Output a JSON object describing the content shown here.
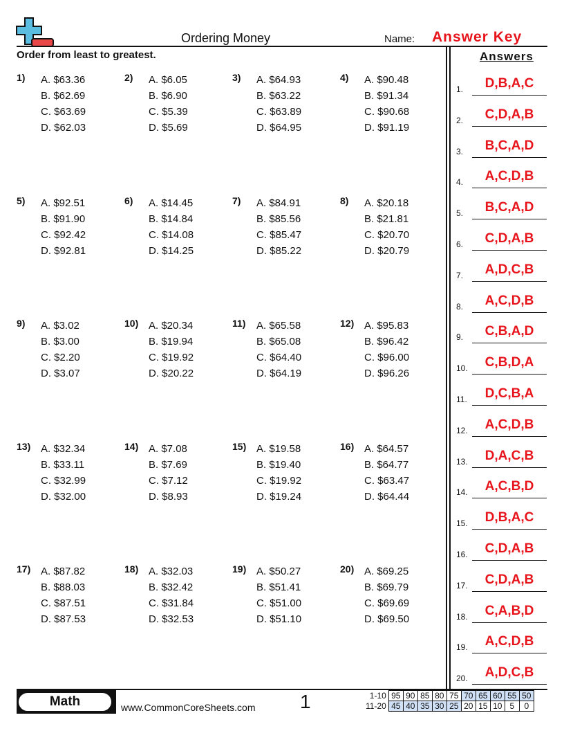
{
  "header": {
    "title": "Ordering Money",
    "name_label": "Name:",
    "name_value": "Answer Key",
    "logo": "plus-minus-logo",
    "colors": {
      "logo_plus": "#5bbde0",
      "logo_minus": "#e84848",
      "answer": "#e8141c"
    }
  },
  "instructions": "Order from least to greatest.",
  "answers_heading": "Answers",
  "problems": [
    {
      "n": "1)",
      "opts": [
        "A. $63.36",
        "B. $62.69",
        "C. $63.69",
        "D. $62.03"
      ]
    },
    {
      "n": "2)",
      "opts": [
        "A. $6.05",
        "B. $6.90",
        "C. $5.39",
        "D. $5.69"
      ]
    },
    {
      "n": "3)",
      "opts": [
        "A. $64.93",
        "B. $63.22",
        "C. $63.89",
        "D. $64.95"
      ]
    },
    {
      "n": "4)",
      "opts": [
        "A. $90.48",
        "B. $91.34",
        "C. $90.68",
        "D. $91.19"
      ]
    },
    {
      "n": "5)",
      "opts": [
        "A. $92.51",
        "B. $91.90",
        "C. $92.42",
        "D. $92.81"
      ]
    },
    {
      "n": "6)",
      "opts": [
        "A. $14.45",
        "B. $14.84",
        "C. $14.08",
        "D. $14.25"
      ]
    },
    {
      "n": "7)",
      "opts": [
        "A. $84.91",
        "B. $85.56",
        "C. $85.47",
        "D. $85.22"
      ]
    },
    {
      "n": "8)",
      "opts": [
        "A. $20.18",
        "B. $21.81",
        "C. $20.70",
        "D. $20.79"
      ]
    },
    {
      "n": "9)",
      "opts": [
        "A. $3.02",
        "B. $3.00",
        "C. $2.20",
        "D. $3.07"
      ]
    },
    {
      "n": "10)",
      "opts": [
        "A. $20.34",
        "B. $19.94",
        "C. $19.92",
        "D. $20.22"
      ]
    },
    {
      "n": "11)",
      "opts": [
        "A. $65.58",
        "B. $65.08",
        "C. $64.40",
        "D. $64.19"
      ]
    },
    {
      "n": "12)",
      "opts": [
        "A. $95.83",
        "B. $96.42",
        "C. $96.00",
        "D. $96.26"
      ]
    },
    {
      "n": "13)",
      "opts": [
        "A. $32.34",
        "B. $33.11",
        "C. $32.99",
        "D. $32.00"
      ]
    },
    {
      "n": "14)",
      "opts": [
        "A. $7.08",
        "B. $7.69",
        "C. $7.12",
        "D. $8.93"
      ]
    },
    {
      "n": "15)",
      "opts": [
        "A. $19.58",
        "B. $19.40",
        "C. $19.92",
        "D. $19.24"
      ]
    },
    {
      "n": "16)",
      "opts": [
        "A. $64.57",
        "B. $64.77",
        "C. $63.47",
        "D. $64.44"
      ]
    },
    {
      "n": "17)",
      "opts": [
        "A. $87.82",
        "B. $88.03",
        "C. $87.51",
        "D. $87.53"
      ]
    },
    {
      "n": "18)",
      "opts": [
        "A. $32.03",
        "B. $32.42",
        "C. $31.84",
        "D. $32.53"
      ]
    },
    {
      "n": "19)",
      "opts": [
        "A. $50.27",
        "B. $51.41",
        "C. $51.00",
        "D. $51.10"
      ]
    },
    {
      "n": "20)",
      "opts": [
        "A. $69.25",
        "B. $69.79",
        "C. $69.69",
        "D. $69.50"
      ]
    }
  ],
  "answers": [
    {
      "n": "1.",
      "v": "D,B,A,C"
    },
    {
      "n": "2.",
      "v": "C,D,A,B"
    },
    {
      "n": "3.",
      "v": "B,C,A,D"
    },
    {
      "n": "4.",
      "v": "A,C,D,B"
    },
    {
      "n": "5.",
      "v": "B,C,A,D"
    },
    {
      "n": "6.",
      "v": "C,D,A,B"
    },
    {
      "n": "7.",
      "v": "A,D,C,B"
    },
    {
      "n": "8.",
      "v": "A,C,D,B"
    },
    {
      "n": "9.",
      "v": "C,B,A,D"
    },
    {
      "n": "10.",
      "v": "C,B,D,A"
    },
    {
      "n": "11.",
      "v": "D,C,B,A"
    },
    {
      "n": "12.",
      "v": "A,C,D,B"
    },
    {
      "n": "13.",
      "v": "D,A,C,B"
    },
    {
      "n": "14.",
      "v": "A,C,B,D"
    },
    {
      "n": "15.",
      "v": "D,B,A,C"
    },
    {
      "n": "16.",
      "v": "C,D,A,B"
    },
    {
      "n": "17.",
      "v": "C,D,A,B"
    },
    {
      "n": "18.",
      "v": "C,A,B,D"
    },
    {
      "n": "19.",
      "v": "A,C,D,B"
    },
    {
      "n": "20.",
      "v": "A,D,C,B"
    }
  ],
  "footer": {
    "subject": "Math",
    "website": "www.CommonCoreSheets.com",
    "page": "1",
    "score_rows": [
      {
        "label": "1-10",
        "cells": [
          "95",
          "90",
          "85",
          "80",
          "75",
          "70",
          "65",
          "60",
          "55",
          "50"
        ],
        "highlighted": [
          false,
          false,
          false,
          false,
          false,
          true,
          true,
          true,
          true,
          true
        ]
      },
      {
        "label": "11-20",
        "cells": [
          "45",
          "40",
          "35",
          "30",
          "25",
          "20",
          "15",
          "10",
          "5",
          "0"
        ],
        "highlighted": [
          true,
          true,
          true,
          true,
          true,
          false,
          false,
          false,
          false,
          false
        ]
      }
    ]
  }
}
